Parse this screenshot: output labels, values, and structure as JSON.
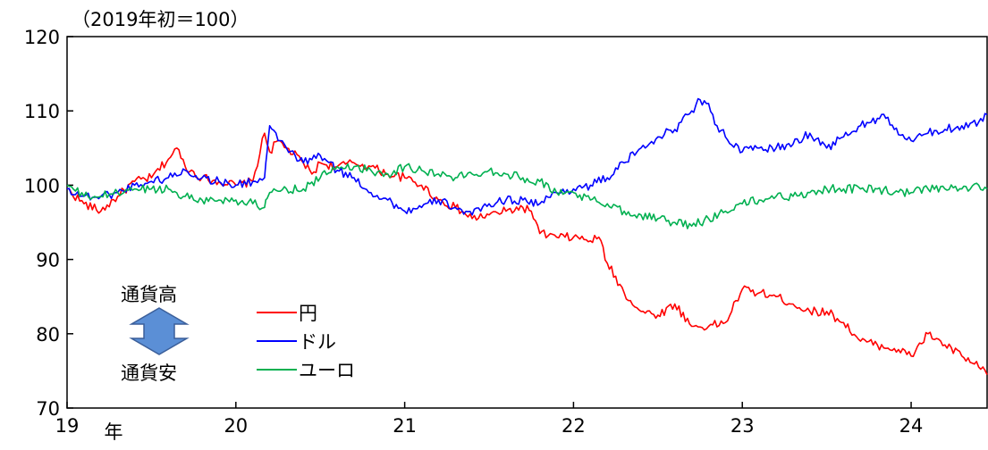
{
  "note": "（2019年初＝100）",
  "strength_labels": {
    "up": "通貨高",
    "down": "通貨安"
  },
  "chart_data": {
    "type": "line",
    "title": "",
    "xlabel": "",
    "ylabel": "",
    "x_unit_label": "年",
    "ylim": [
      70,
      120
    ],
    "yticks": [
      70,
      80,
      90,
      100,
      110,
      120
    ],
    "xlim": [
      19,
      24.45
    ],
    "xticks": [
      19,
      20,
      21,
      22,
      23,
      24
    ],
    "xtick_labels": [
      "19",
      "20",
      "21",
      "22",
      "23",
      "24"
    ],
    "grid": false,
    "legend_position": "lower-left",
    "series": [
      {
        "name": "円",
        "color": "#ff0000",
        "x": [
          19.0,
          19.1,
          19.2,
          19.3,
          19.4,
          19.5,
          19.6,
          19.65,
          19.7,
          19.8,
          19.9,
          20.0,
          20.1,
          20.17,
          20.2,
          20.25,
          20.3,
          20.4,
          20.45,
          20.5,
          20.6,
          20.7,
          20.8,
          20.9,
          21.0,
          21.1,
          21.2,
          21.3,
          21.4,
          21.5,
          21.6,
          21.7,
          21.75,
          21.8,
          21.9,
          22.0,
          22.1,
          22.15,
          22.2,
          22.3,
          22.4,
          22.5,
          22.6,
          22.7,
          22.8,
          22.9,
          23.0,
          23.1,
          23.2,
          23.3,
          23.4,
          23.5,
          23.6,
          23.7,
          23.8,
          23.9,
          24.0,
          24.1,
          24.2,
          24.3,
          24.4,
          24.45
        ],
        "values": [
          99.5,
          97.5,
          96.5,
          98.5,
          100.5,
          101.0,
          103.5,
          105.0,
          102.5,
          101.0,
          100.5,
          100.0,
          100.5,
          107.0,
          104.5,
          106.0,
          105.0,
          103.0,
          101.5,
          103.0,
          102.5,
          103.0,
          102.5,
          101.5,
          101.0,
          100.0,
          98.0,
          97.0,
          95.5,
          96.0,
          96.5,
          97.0,
          96.5,
          93.5,
          93.0,
          93.0,
          92.5,
          93.0,
          89.5,
          85.5,
          83.0,
          82.5,
          84.0,
          81.0,
          81.0,
          81.5,
          86.0,
          85.5,
          85.0,
          84.0,
          83.0,
          83.0,
          81.5,
          79.0,
          78.5,
          78.0,
          77.0,
          80.0,
          78.5,
          77.0,
          75.5,
          74.5
        ]
      },
      {
        "name": "ドル",
        "color": "#0000ff",
        "x": [
          19.0,
          19.1,
          19.2,
          19.3,
          19.4,
          19.5,
          19.6,
          19.7,
          19.8,
          19.9,
          20.0,
          20.1,
          20.17,
          20.2,
          20.25,
          20.3,
          20.4,
          20.5,
          20.6,
          20.7,
          20.8,
          20.9,
          21.0,
          21.1,
          21.2,
          21.3,
          21.4,
          21.5,
          21.6,
          21.7,
          21.8,
          21.9,
          22.0,
          22.1,
          22.2,
          22.3,
          22.4,
          22.5,
          22.6,
          22.7,
          22.75,
          22.8,
          22.85,
          22.9,
          23.0,
          23.1,
          23.2,
          23.3,
          23.4,
          23.5,
          23.6,
          23.7,
          23.8,
          23.85,
          23.9,
          24.0,
          24.1,
          24.2,
          24.3,
          24.4,
          24.45
        ],
        "values": [
          99.5,
          98.5,
          98.5,
          99.0,
          100.0,
          100.5,
          101.0,
          102.0,
          101.0,
          100.5,
          100.0,
          100.5,
          101.0,
          108.0,
          106.0,
          105.0,
          103.0,
          104.0,
          102.0,
          101.0,
          99.0,
          98.0,
          96.5,
          97.0,
          98.0,
          97.0,
          96.0,
          97.5,
          98.0,
          98.0,
          97.5,
          99.0,
          99.5,
          100.0,
          101.0,
          103.0,
          105.0,
          106.5,
          107.5,
          110.0,
          111.5,
          111.0,
          108.0,
          106.5,
          104.5,
          105.0,
          105.0,
          105.5,
          107.0,
          105.0,
          106.5,
          108.0,
          109.0,
          109.0,
          107.5,
          106.0,
          107.0,
          107.5,
          108.0,
          108.5,
          109.5
        ]
      },
      {
        "name": "ユーロ",
        "color": "#00b050",
        "x": [
          19.0,
          19.1,
          19.2,
          19.3,
          19.4,
          19.5,
          19.6,
          19.7,
          19.8,
          19.9,
          20.0,
          20.1,
          20.17,
          20.2,
          20.3,
          20.4,
          20.5,
          20.6,
          20.7,
          20.8,
          20.9,
          21.0,
          21.1,
          21.2,
          21.3,
          21.4,
          21.5,
          21.6,
          21.7,
          21.8,
          21.9,
          22.0,
          22.1,
          22.2,
          22.3,
          22.4,
          22.5,
          22.6,
          22.7,
          22.8,
          22.9,
          23.0,
          23.1,
          23.2,
          23.3,
          23.4,
          23.5,
          23.6,
          23.7,
          23.8,
          23.9,
          24.0,
          24.1,
          24.2,
          24.3,
          24.4,
          24.45
        ],
        "values": [
          100.0,
          98.5,
          98.5,
          99.0,
          99.5,
          99.5,
          99.5,
          98.5,
          98.0,
          98.0,
          98.0,
          97.5,
          97.0,
          99.0,
          99.5,
          99.5,
          101.0,
          102.5,
          102.5,
          102.0,
          101.5,
          102.5,
          102.0,
          101.5,
          101.0,
          101.5,
          102.0,
          101.5,
          101.0,
          100.5,
          99.0,
          99.0,
          98.0,
          97.5,
          96.5,
          96.0,
          95.5,
          95.0,
          94.5,
          95.5,
          96.5,
          97.5,
          98.0,
          98.5,
          98.5,
          99.0,
          99.5,
          99.5,
          99.5,
          99.5,
          99.0,
          99.0,
          99.5,
          99.5,
          99.5,
          100.0,
          99.5
        ]
      }
    ]
  }
}
